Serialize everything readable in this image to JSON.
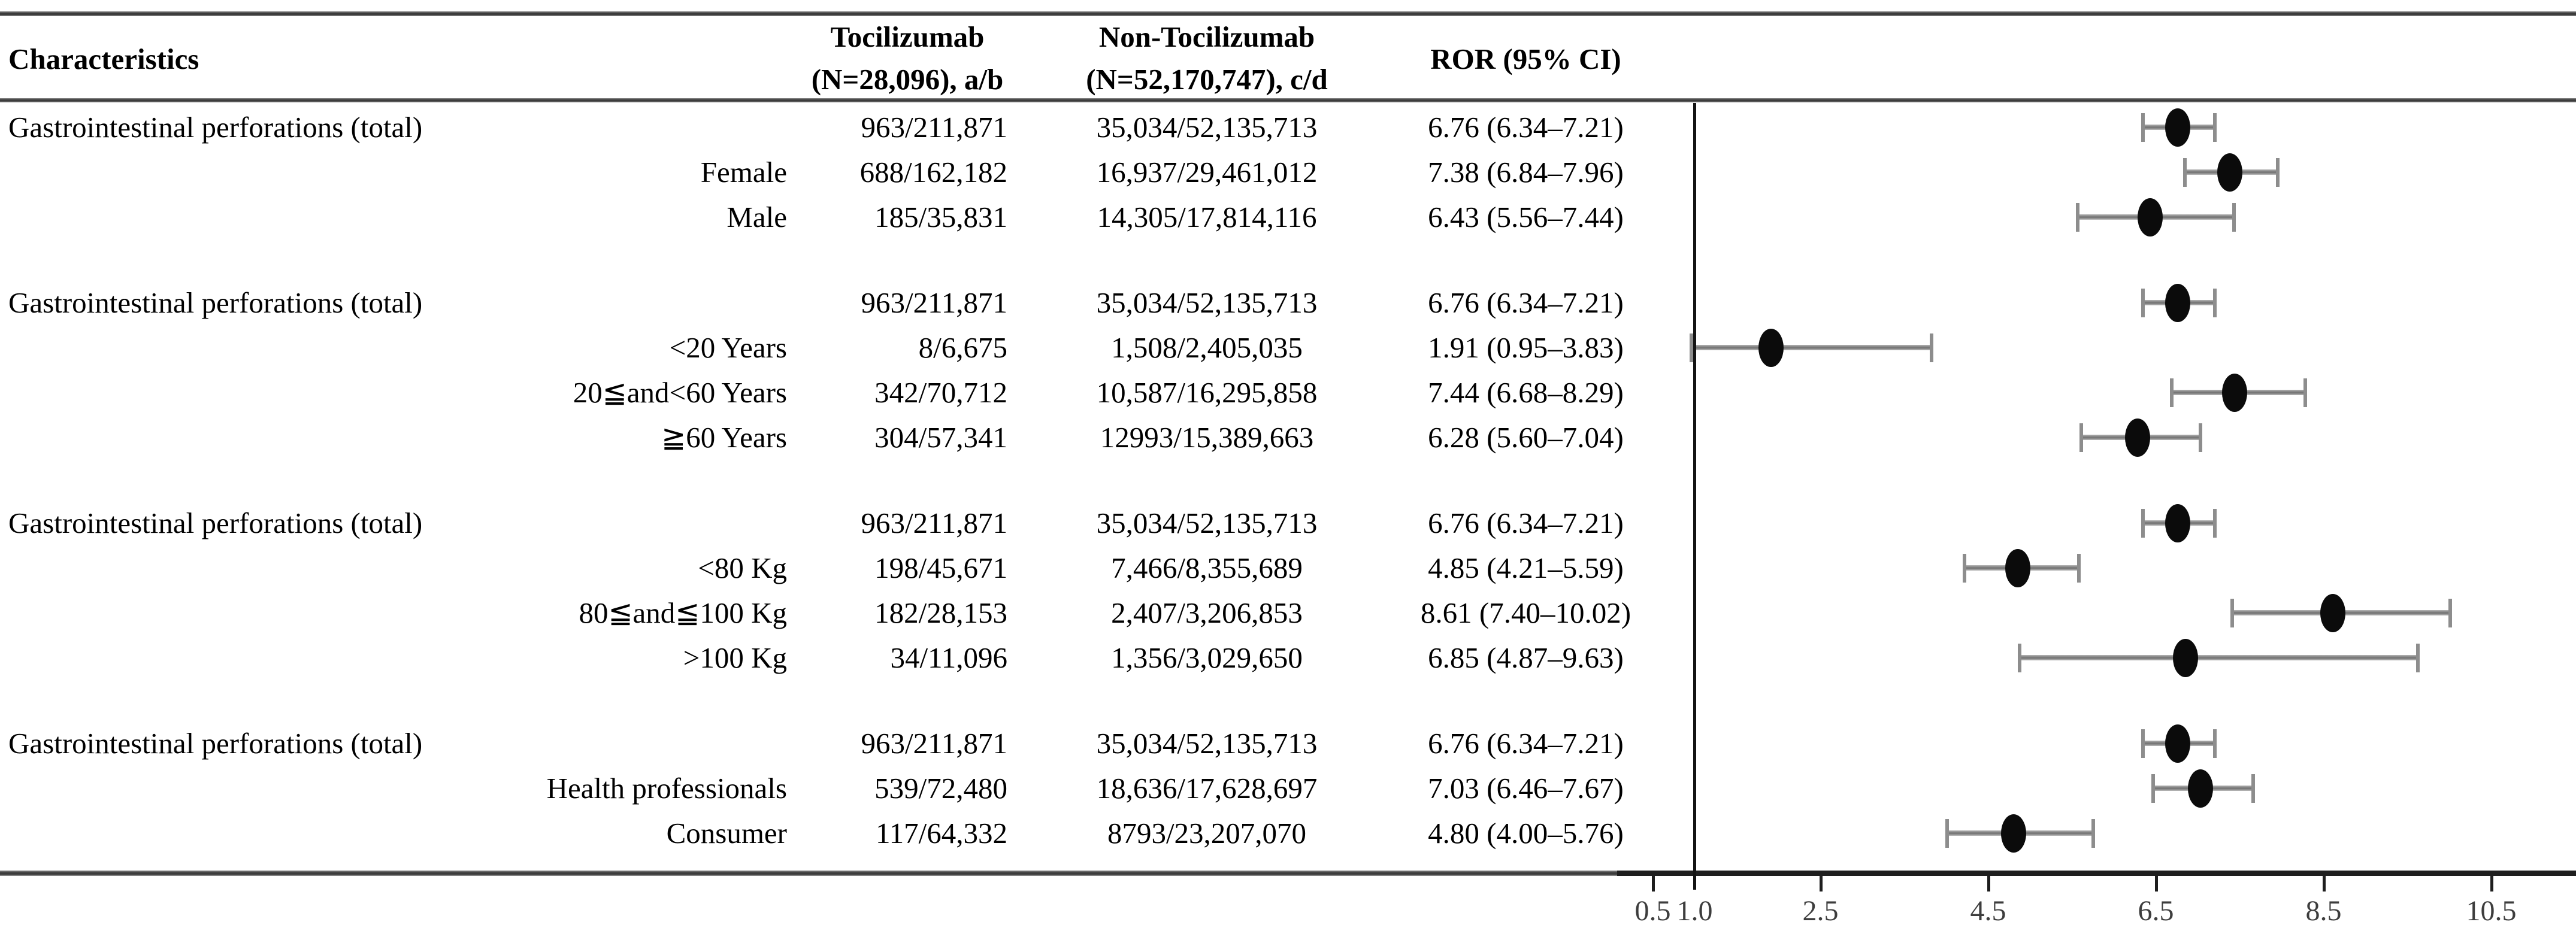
{
  "header": {
    "characteristics": "Characteristics",
    "tocilizumab_line1": "Tocilizumab",
    "tocilizumab_line2": "(N=28,096), a/b",
    "non_tocilizumab_line1": "Non-Tocilizumab",
    "non_tocilizumab_line2": "(N=52,170,747), c/d",
    "ror": "ROR (95% CI)"
  },
  "colors": {
    "marker": "#0b0b0b",
    "error_bar": "#8d8d8d",
    "rules": "#4f4f4f",
    "reference_line": "#141414",
    "tick_label": "#3d3d3d",
    "text": "#000000"
  },
  "chart_data": {
    "type": "forest",
    "title": "",
    "xlabel": "",
    "x_axis": {
      "range": [
        0.3,
        11.3
      ],
      "reference_line": 1.0,
      "ticks": [
        0.5,
        2.5,
        4.5,
        6.5,
        8.5,
        10.5
      ],
      "tick_labels": [
        "0.5",
        "1.0",
        "2.5",
        "4.5",
        "6.5",
        "8.5",
        "10.5"
      ],
      "tick_label_values": [
        0.5,
        1.0,
        2.5,
        4.5,
        6.5,
        8.5,
        10.5
      ]
    },
    "groups": [
      {
        "rows": [
          {
            "label": "Gastrointestinal perforations (total)",
            "tocilizumab": "963/211,871",
            "non_tocilizumab": "35,034/52,135,713",
            "ror_text": "6.76 (6.34–7.21)",
            "ror": 6.76,
            "ci_low": 6.34,
            "ci_high": 7.21
          },
          {
            "label": "Female",
            "tocilizumab": "688/162,182",
            "non_tocilizumab": "16,937/29,461,012",
            "ror_text": "7.38 (6.84–7.96)",
            "ror": 7.38,
            "ci_low": 6.84,
            "ci_high": 7.96
          },
          {
            "label": "Male",
            "tocilizumab": "185/35,831",
            "non_tocilizumab": "14,305/17,814,116",
            "ror_text": "6.43 (5.56–7.44)",
            "ror": 6.43,
            "ci_low": 5.56,
            "ci_high": 7.44
          }
        ]
      },
      {
        "rows": [
          {
            "label": "Gastrointestinal perforations (total)",
            "tocilizumab": "963/211,871",
            "non_tocilizumab": "35,034/52,135,713",
            "ror_text": "6.76 (6.34–7.21)",
            "ror": 6.76,
            "ci_low": 6.34,
            "ci_high": 7.21
          },
          {
            "label": "<20 Years",
            "tocilizumab": "8/6,675",
            "non_tocilizumab": "1,508/2,405,035",
            "ror_text": "1.91 (0.95–3.83)",
            "ror": 1.91,
            "ci_low": 0.95,
            "ci_high": 3.83
          },
          {
            "label": "20≦and<60 Years",
            "tocilizumab": "342/70,712",
            "non_tocilizumab": "10,587/16,295,858",
            "ror_text": "7.44 (6.68–8.29)",
            "ror": 7.44,
            "ci_low": 6.68,
            "ci_high": 8.29
          },
          {
            "label": "≧60 Years",
            "tocilizumab": "304/57,341",
            "non_tocilizumab": "12993/15,389,663",
            "ror_text": "6.28 (5.60–7.04)",
            "ror": 6.28,
            "ci_low": 5.6,
            "ci_high": 7.04
          }
        ]
      },
      {
        "rows": [
          {
            "label": "Gastrointestinal perforations (total)",
            "tocilizumab": "963/211,871",
            "non_tocilizumab": "35,034/52,135,713",
            "ror_text": "6.76 (6.34–7.21)",
            "ror": 6.76,
            "ci_low": 6.34,
            "ci_high": 7.21
          },
          {
            "label": "<80 Kg",
            "tocilizumab": "198/45,671",
            "non_tocilizumab": "7,466/8,355,689",
            "ror_text": "4.85 (4.21–5.59)",
            "ror": 4.85,
            "ci_low": 4.21,
            "ci_high": 5.59
          },
          {
            "label": "80≦and≦100 Kg",
            "tocilizumab": "182/28,153",
            "non_tocilizumab": "2,407/3,206,853",
            "ror_text": "8.61 (7.40–10.02)",
            "ror": 8.61,
            "ci_low": 7.4,
            "ci_high": 10.02
          },
          {
            "label": ">100 Kg",
            "tocilizumab": "34/11,096",
            "non_tocilizumab": "1,356/3,029,650",
            "ror_text": "6.85 (4.87–9.63)",
            "ror": 6.85,
            "ci_low": 4.87,
            "ci_high": 9.63
          }
        ]
      },
      {
        "rows": [
          {
            "label": "Gastrointestinal perforations (total)",
            "tocilizumab": "963/211,871",
            "non_tocilizumab": "35,034/52,135,713",
            "ror_text": "6.76 (6.34–7.21)",
            "ror": 6.76,
            "ci_low": 6.34,
            "ci_high": 7.21
          },
          {
            "label": "Health professionals",
            "tocilizumab": "539/72,480",
            "non_tocilizumab": "18,636/17,628,697",
            "ror_text": "7.03 (6.46–7.67)",
            "ror": 7.03,
            "ci_low": 6.46,
            "ci_high": 7.67
          },
          {
            "label": "Consumer",
            "tocilizumab": "117/64,332",
            "non_tocilizumab": "8793/23,207,070",
            "ror_text": "4.80 (4.00–5.76)",
            "ror": 4.8,
            "ci_low": 4.0,
            "ci_high": 5.76
          }
        ]
      }
    ]
  }
}
